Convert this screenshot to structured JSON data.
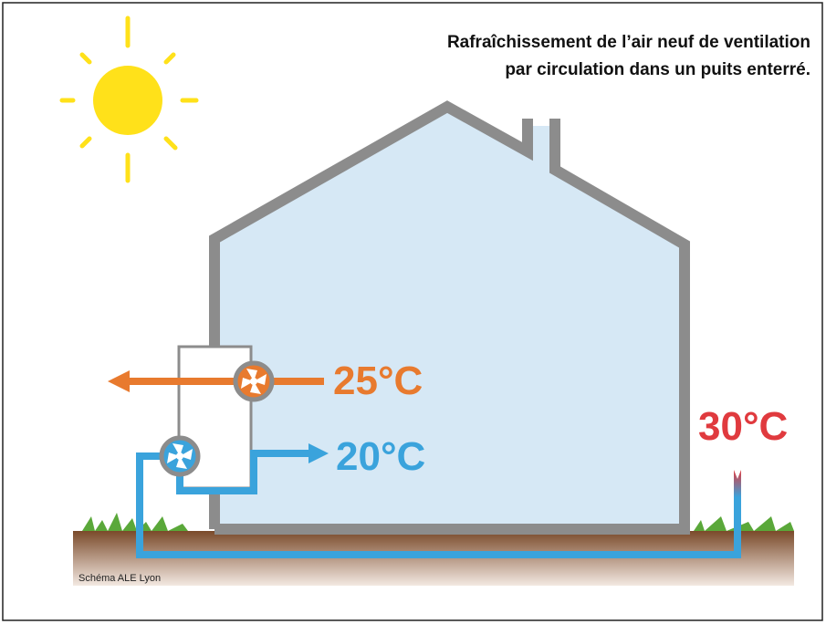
{
  "title": {
    "line1": "Rafraîchissement de l’air neuf de ventilation",
    "line2": "par circulation dans un puits enterré."
  },
  "labels": {
    "exhaust": "25°C",
    "supply": "20°C",
    "outside": "30°C"
  },
  "credit": "Schéma ALE Lyon"
}
